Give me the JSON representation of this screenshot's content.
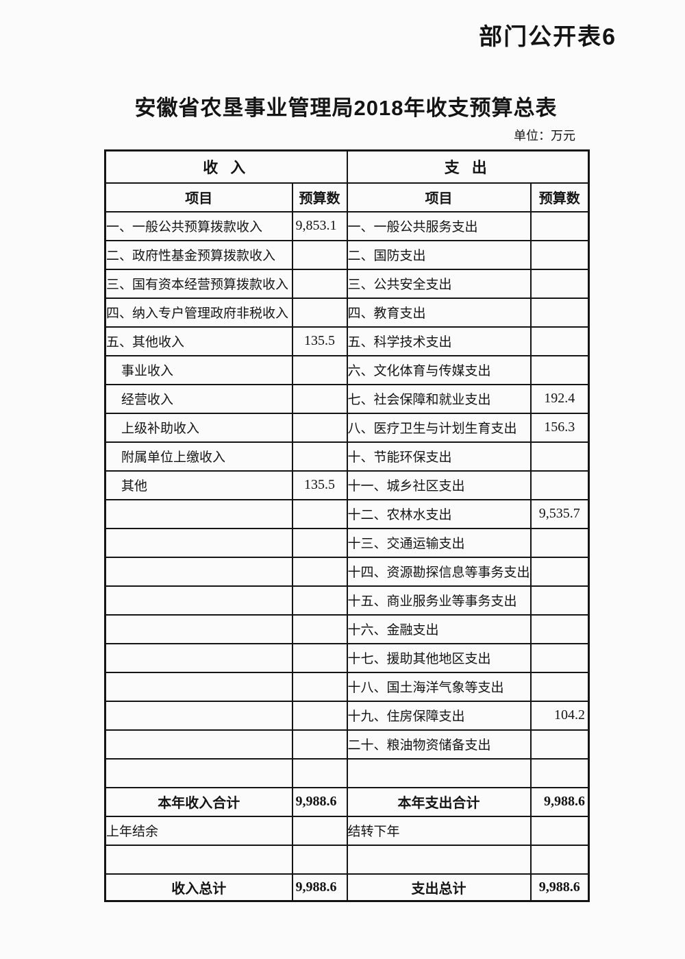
{
  "page": {
    "corner_label": "部门公开表6",
    "title": "安徽省农垦事业管理局2018年收支预算总表",
    "unit_note": "单位：万元"
  },
  "table": {
    "income_section_header": "收 入",
    "expense_section_header": "支 出",
    "item_header": "项目",
    "budget_header": "预算数",
    "rows": [
      {
        "income_label": "一、一般公共预算拨款收入",
        "income_value": "9,853.1",
        "income_value_align": "left",
        "expense_label": "一、一般公共服务支出",
        "expense_value": ""
      },
      {
        "income_label": "二、政府性基金预算拨款收入",
        "income_value": "",
        "expense_label": "二、国防支出",
        "expense_value": ""
      },
      {
        "income_label": "三、国有资本经营预算拨款收入",
        "income_value": "",
        "expense_label": "三、公共安全支出",
        "expense_value": ""
      },
      {
        "income_label": "四、纳入专户管理政府非税收入",
        "income_value": "",
        "expense_label": "四、教育支出",
        "expense_value": ""
      },
      {
        "income_label": "五、其他收入",
        "income_value": "135.5",
        "expense_label": "五、科学技术支出",
        "expense_value": ""
      },
      {
        "income_label": "事业收入",
        "income_indent": true,
        "income_value": "",
        "expense_label": "六、文化体育与传媒支出",
        "expense_value": ""
      },
      {
        "income_label": "经营收入",
        "income_indent": true,
        "income_value": "",
        "expense_label": "七、社会保障和就业支出",
        "expense_value": "192.4"
      },
      {
        "income_label": "上级补助收入",
        "income_indent": true,
        "income_value": "",
        "expense_label": "八、医疗卫生与计划生育支出",
        "expense_value": "156.3"
      },
      {
        "income_label": "附属单位上缴收入",
        "income_indent": true,
        "income_value": "",
        "expense_label": "十、节能环保支出",
        "expense_value": ""
      },
      {
        "income_label": "其他",
        "income_indent": true,
        "income_value": "135.5",
        "expense_label": "十一、城乡社区支出",
        "expense_value": ""
      },
      {
        "income_label": "",
        "income_value": "",
        "expense_label": "十二、农林水支出",
        "expense_value": "9,535.7"
      },
      {
        "income_label": "",
        "income_value": "",
        "expense_label": "十三、交通运输支出",
        "expense_value": ""
      },
      {
        "income_label": "",
        "income_value": "",
        "expense_label": "十四、资源勘探信息等事务支出",
        "expense_value": ""
      },
      {
        "income_label": "",
        "income_value": "",
        "expense_label": "十五、商业服务业等事务支出",
        "expense_value": ""
      },
      {
        "income_label": "",
        "income_value": "",
        "expense_label": "十六、金融支出",
        "expense_value": ""
      },
      {
        "income_label": "",
        "income_value": "",
        "expense_label": "十七、援助其他地区支出",
        "expense_value": ""
      },
      {
        "income_label": "",
        "income_value": "",
        "expense_label": "十八、国土海洋气象等支出",
        "expense_value": ""
      },
      {
        "income_label": "",
        "income_value": "",
        "expense_label": "十九、住房保障支出",
        "expense_value": "104.2",
        "expense_value_align": "right"
      },
      {
        "income_label": "",
        "income_value": "",
        "expense_label": "二十、粮油物资储备支出",
        "expense_value": ""
      },
      {
        "income_label": "",
        "income_value": "",
        "expense_label": "",
        "expense_value": ""
      }
    ],
    "subtotal": {
      "income_label": "本年收入合计",
      "income_value": "9,988.6",
      "expense_label": "本年支出合计",
      "expense_value": "9,988.6"
    },
    "carryover": {
      "income_label": "上年结余",
      "income_value": "",
      "expense_label": "结转下年",
      "expense_value": ""
    },
    "total": {
      "income_label": "收入总计",
      "income_value": "9,988.6",
      "expense_label": "支出总计",
      "expense_value": "9,988.6"
    }
  }
}
